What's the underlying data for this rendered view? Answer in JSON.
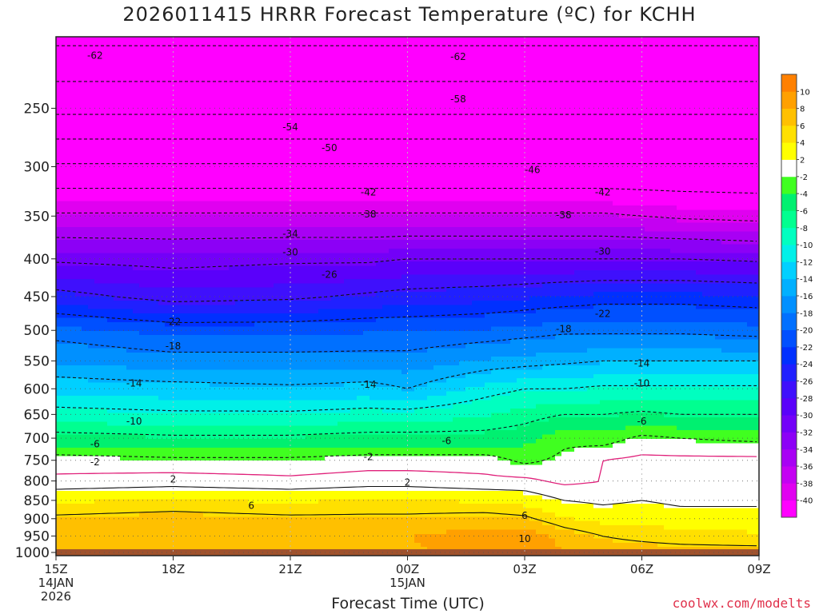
{
  "title": "2026011415 HRRR Forecast Temperature (ºC) for KCHH",
  "credit": "coolwx.com/modelts",
  "chart_data": {
    "type": "heatmap",
    "subtype": "time-height filled contour",
    "xlabel": "Forecast Time (UTC)",
    "ylabel": "",
    "y_scale": "log",
    "y_reversed": true,
    "ylim": [
      1010,
      200
    ],
    "xlim": [
      0,
      18
    ],
    "x_ticks": [
      {
        "hour": 0,
        "lines": [
          "15Z",
          "14JAN",
          "2026"
        ]
      },
      {
        "hour": 3,
        "lines": [
          "18Z"
        ]
      },
      {
        "hour": 6,
        "lines": [
          "21Z"
        ]
      },
      {
        "hour": 9,
        "lines": [
          "00Z",
          "15JAN"
        ]
      },
      {
        "hour": 12,
        "lines": [
          "03Z"
        ]
      },
      {
        "hour": 15,
        "lines": [
          "06Z"
        ]
      },
      {
        "hour": 18,
        "lines": [
          "09Z"
        ]
      }
    ],
    "y_ticks": [
      250,
      300,
      350,
      400,
      450,
      500,
      550,
      600,
      650,
      700,
      750,
      800,
      850,
      900,
      950,
      1000
    ],
    "grid": true,
    "surface_pressure": 990,
    "colorbar": {
      "placement": "right",
      "bounds": [
        -42,
        -40,
        -38,
        -36,
        -34,
        -32,
        -30,
        -28,
        -26,
        -24,
        -22,
        -20,
        -18,
        -16,
        -14,
        -12,
        -10,
        -8,
        -6,
        -4,
        -2,
        2,
        4,
        6,
        8,
        10,
        12
      ],
      "colors": [
        "#ff00ff",
        "#e000f0",
        "#c400f2",
        "#a800f4",
        "#8c00f6",
        "#7300f8",
        "#5a00fa",
        "#3f10fc",
        "#2020ff",
        "#0030ff",
        "#0050ff",
        "#0070ff",
        "#0090ff",
        "#00b0ff",
        "#00d0ff",
        "#00f0e8",
        "#00ffc0",
        "#00ff90",
        "#00f070",
        "#40ff20",
        "#ffffff",
        "#ffff00",
        "#ffe000",
        "#ffc000",
        "#ffa000",
        "#ff8000"
      ],
      "tick_labels": [
        "-40",
        "-38",
        "-36",
        "-34",
        "-32",
        "-30",
        "-28",
        "-26",
        "-24",
        "-22",
        "-20",
        "-18",
        "-16",
        "-14",
        "-12",
        "-10",
        "-8",
        "-6",
        "-4",
        "-2",
        "2",
        "4",
        "6",
        "8",
        "10"
      ]
    },
    "profile_hours": [
      0,
      3,
      6,
      8,
      9,
      11,
      12,
      13,
      14,
      15,
      16,
      18
    ],
    "profile_pressures": [
      1000,
      950,
      900,
      850,
      800,
      750,
      700,
      650,
      600,
      550,
      500,
      450,
      400,
      350,
      300,
      250,
      200
    ],
    "temperature": [
      [
        6.5,
        7.5,
        6.5,
        4.0,
        0.5,
        -1.0,
        -5.0,
        -9.0,
        -12.5,
        -16.0,
        -19.0,
        -25.0,
        -30.5,
        -37.5,
        -45.5,
        -55.0,
        -63.0
      ],
      [
        6.5,
        8.0,
        7.0,
        4.5,
        1.0,
        -1.5,
        -5.5,
        -9.5,
        -13.0,
        -17.0,
        -20.5,
        -27.0,
        -31.0,
        -37.5,
        -45.5,
        -55.0,
        -63.0
      ],
      [
        6.5,
        7.5,
        6.5,
        4.0,
        0.5,
        -1.5,
        -5.5,
        -9.5,
        -13.5,
        -17.0,
        -20.5,
        -26.5,
        -30.5,
        -37.5,
        -45.5,
        -55.0,
        -63.0
      ],
      [
        7.0,
        8.0,
        6.5,
        4.5,
        1.0,
        -1.0,
        -5.0,
        -9.0,
        -13.0,
        -17.0,
        -20.0,
        -25.5,
        -30.5,
        -37.5,
        -45.5,
        -55.0,
        -63.0
      ],
      [
        7.5,
        8.0,
        6.5,
        4.5,
        1.0,
        -1.0,
        -5.0,
        -9.0,
        -14.0,
        -17.0,
        -20.0,
        -25.0,
        -30.0,
        -37.5,
        -45.5,
        -55.0,
        -63.0
      ],
      [
        8.5,
        9.5,
        7.0,
        4.0,
        0.5,
        -1.0,
        -5.0,
        -8.0,
        -11.0,
        -15.5,
        -19.5,
        -24.5,
        -30.0,
        -37.5,
        -45.5,
        -55.0,
        -63.0
      ],
      [
        9.0,
        10.0,
        6.5,
        3.5,
        0.5,
        -2.5,
        -4.5,
        -7.0,
        -10.0,
        -15.0,
        -19.0,
        -24.0,
        -30.0,
        -37.5,
        -45.5,
        -55.0,
        -63.0
      ],
      [
        8.0,
        7.5,
        4.5,
        2.0,
        -0.5,
        -1.5,
        -2.5,
        -6.0,
        -10.0,
        -14.5,
        -18.5,
        -23.5,
        -30.0,
        -37.5,
        -45.5,
        -55.0,
        -63.0
      ],
      [
        7.0,
        6.0,
        3.5,
        1.5,
        0.0,
        0.0,
        -3.0,
        -6.0,
        -9.5,
        -14.0,
        -18.5,
        -23.0,
        -30.0,
        -37.5,
        -45.5,
        -55.0,
        -63.0
      ],
      [
        7.0,
        5.5,
        3.5,
        2.0,
        0.5,
        0.5,
        -1.5,
        -5.5,
        -9.5,
        -14.0,
        -18.5,
        -23.0,
        -30.0,
        -38.0,
        -45.5,
        -55.0,
        -63.0
      ],
      [
        7.0,
        5.0,
        3.0,
        1.5,
        0.5,
        0.5,
        -2.0,
        -6.0,
        -9.5,
        -14.0,
        -18.5,
        -23.0,
        -30.0,
        -38.5,
        -45.5,
        -55.0,
        -63.0
      ],
      [
        7.0,
        4.5,
        3.0,
        1.5,
        0.5,
        0.5,
        -2.5,
        -6.0,
        -9.5,
        -14.0,
        -19.0,
        -23.5,
        -30.5,
        -39.0,
        -45.5,
        -55.0,
        -63.0
      ]
    ],
    "contour_levels": [
      -62,
      -58,
      -54,
      -50,
      -46,
      -42,
      -38,
      -34,
      -30,
      -26,
      -22,
      -18,
      -14,
      -10,
      -6,
      -2,
      2,
      6,
      10
    ],
    "contour_labels": [
      {
        "text": "-62",
        "hour": 1.0,
        "p": 212
      },
      {
        "text": "-62",
        "hour": 10.3,
        "p": 213
      },
      {
        "text": "-58",
        "hour": 10.3,
        "p": 243
      },
      {
        "text": "-54",
        "hour": 6.0,
        "p": 265
      },
      {
        "text": "-50",
        "hour": 7.0,
        "p": 283
      },
      {
        "text": "-46",
        "hour": 12.2,
        "p": 303
      },
      {
        "text": "-42",
        "hour": 8.0,
        "p": 325
      },
      {
        "text": "-42",
        "hour": 14.0,
        "p": 325
      },
      {
        "text": "-38",
        "hour": 8.0,
        "p": 348
      },
      {
        "text": "-38",
        "hour": 13.0,
        "p": 349
      },
      {
        "text": "-34",
        "hour": 6.0,
        "p": 370
      },
      {
        "text": "-30",
        "hour": 6.0,
        "p": 392
      },
      {
        "text": "-30",
        "hour": 14.0,
        "p": 391
      },
      {
        "text": "-26",
        "hour": 7.0,
        "p": 420
      },
      {
        "text": "-22",
        "hour": 3.0,
        "p": 487
      },
      {
        "text": "-22",
        "hour": 14.0,
        "p": 475
      },
      {
        "text": "-18",
        "hour": 3.0,
        "p": 525
      },
      {
        "text": "-18",
        "hour": 13.0,
        "p": 498
      },
      {
        "text": "-14",
        "hour": 2.0,
        "p": 590
      },
      {
        "text": "-14",
        "hour": 8.0,
        "p": 592
      },
      {
        "text": "-14",
        "hour": 15.0,
        "p": 554
      },
      {
        "text": "-10",
        "hour": 2.0,
        "p": 664
      },
      {
        "text": "-10",
        "hour": 15.0,
        "p": 590
      },
      {
        "text": "-6",
        "hour": 1.0,
        "p": 713
      },
      {
        "text": "-6",
        "hour": 10.0,
        "p": 706
      },
      {
        "text": "-6",
        "hour": 15.0,
        "p": 664
      },
      {
        "text": "-2",
        "hour": 1.0,
        "p": 754
      },
      {
        "text": "-2",
        "hour": 8.0,
        "p": 742
      },
      {
        "text": "2",
        "hour": 3.0,
        "p": 796
      },
      {
        "text": "2",
        "hour": 9.0,
        "p": 804
      },
      {
        "text": "6",
        "hour": 5.0,
        "p": 864
      },
      {
        "text": "6",
        "hour": 12.0,
        "p": 892
      },
      {
        "text": "10",
        "hour": 12.0,
        "p": 958
      }
    ]
  }
}
